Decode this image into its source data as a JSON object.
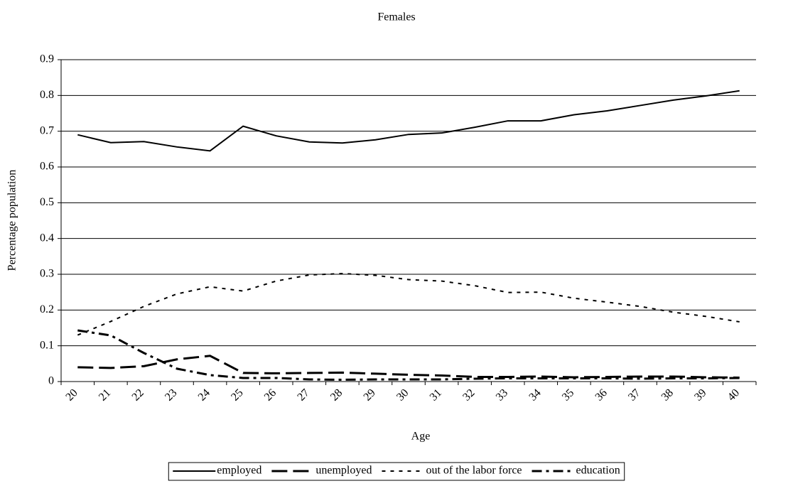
{
  "chart_data": {
    "type": "line",
    "title": "Females",
    "x_label": "Age",
    "y_label": "Percentage population",
    "categories": [
      "20",
      "21",
      "22",
      "23",
      "24",
      "25",
      "26",
      "27",
      "28",
      "29",
      "30",
      "31",
      "32",
      "33",
      "34",
      "35",
      "36",
      "37",
      "38",
      "39",
      "40"
    ],
    "series": [
      {
        "name": "employed",
        "color": "#000000",
        "values": [
          0.69,
          0.668,
          0.671,
          0.656,
          0.645,
          0.714,
          0.687,
          0.67,
          0.667,
          0.676,
          0.691,
          0.695,
          0.711,
          0.729,
          0.729,
          0.746,
          0.757,
          0.772,
          0.787,
          0.799,
          0.813
        ]
      },
      {
        "name": "unemployed",
        "color": "#000000",
        "values": [
          0.04,
          0.038,
          0.043,
          0.062,
          0.072,
          0.024,
          0.023,
          0.024,
          0.025,
          0.022,
          0.019,
          0.017,
          0.013,
          0.013,
          0.014,
          0.012,
          0.013,
          0.014,
          0.014,
          0.012,
          0.011
        ]
      },
      {
        "name": "out of the labor force",
        "color": "#000000",
        "values": [
          0.13,
          0.168,
          0.21,
          0.245,
          0.265,
          0.253,
          0.281,
          0.298,
          0.302,
          0.297,
          0.285,
          0.281,
          0.268,
          0.249,
          0.25,
          0.233,
          0.222,
          0.21,
          0.194,
          0.182,
          0.167
        ]
      },
      {
        "name": "education",
        "color": "#000000",
        "values": [
          0.143,
          0.129,
          0.08,
          0.036,
          0.018,
          0.01,
          0.01,
          0.006,
          0.005,
          0.006,
          0.006,
          0.006,
          0.008,
          0.009,
          0.009,
          0.009,
          0.009,
          0.008,
          0.009,
          0.009,
          0.01
        ]
      }
    ],
    "ylim": [
      0,
      0.9
    ],
    "yticks": [
      0,
      0.1,
      0.2,
      0.3,
      0.4,
      0.5,
      0.6,
      0.7,
      0.8,
      0.9
    ],
    "grid": true,
    "legend": "bottom"
  }
}
